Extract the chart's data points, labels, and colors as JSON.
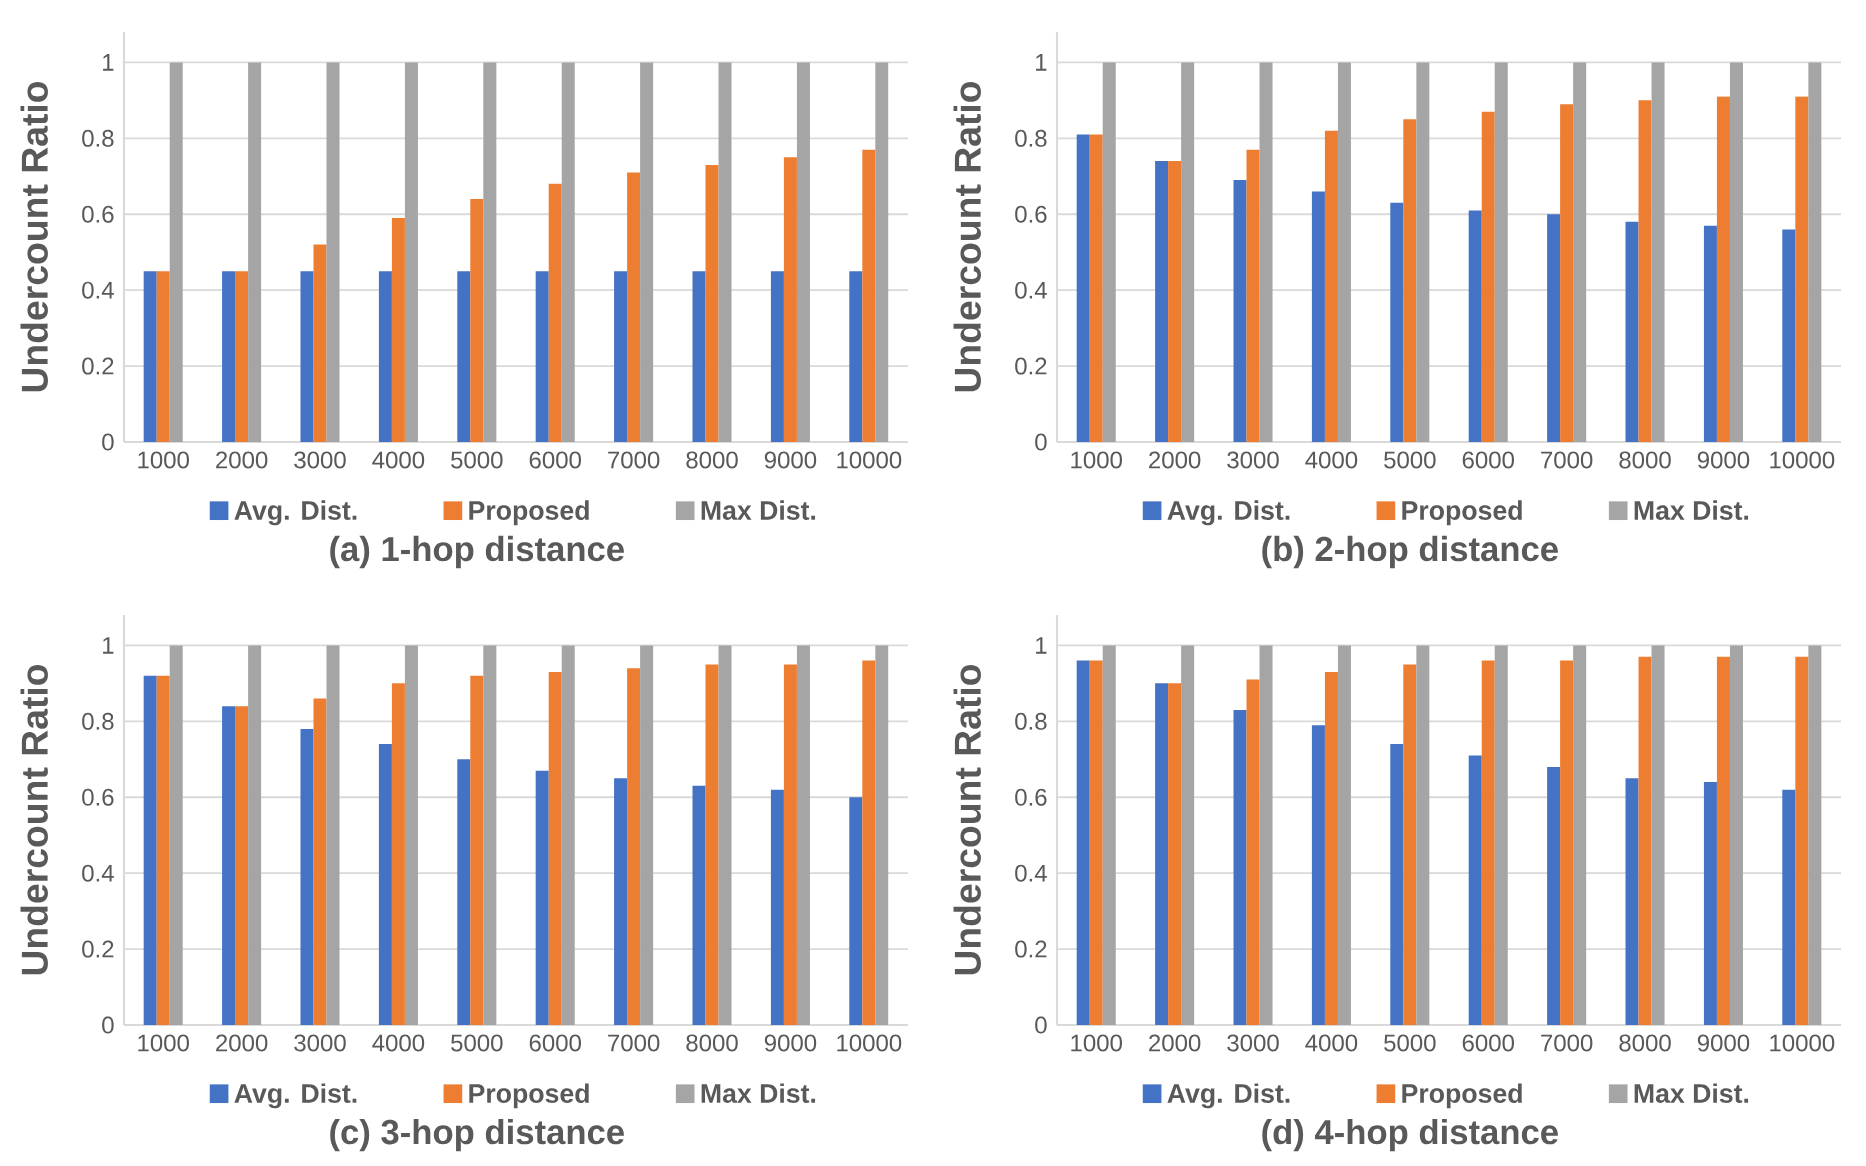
{
  "chart_data": [
    {
      "type": "bar",
      "title": "(a) 1-hop distance",
      "ylabel": "Undercount Ratio",
      "categories": [
        "1000",
        "2000",
        "3000",
        "4000",
        "5000",
        "6000",
        "7000",
        "8000",
        "9000",
        "10000"
      ],
      "ylim": [
        0,
        1.08
      ],
      "yticks": [
        0,
        0.2,
        0.4,
        0.6,
        0.8,
        1
      ],
      "grid": "y",
      "legend": "bottom",
      "series": [
        {
          "name": "Avg. Dist.",
          "color": "#4472c4",
          "values": [
            0.45,
            0.45,
            0.45,
            0.45,
            0.45,
            0.45,
            0.45,
            0.45,
            0.45,
            0.45
          ]
        },
        {
          "name": "Proposed",
          "color": "#ed7d31",
          "values": [
            0.45,
            0.45,
            0.52,
            0.59,
            0.64,
            0.68,
            0.71,
            0.73,
            0.75,
            0.77
          ]
        },
        {
          "name": "Max Dist.",
          "color": "#a5a5a5",
          "values": [
            1,
            1,
            1,
            1,
            1,
            1,
            1,
            1,
            1,
            1
          ]
        }
      ]
    },
    {
      "type": "bar",
      "title": "(b) 2-hop distance",
      "ylabel": "Undercount Ratio",
      "categories": [
        "1000",
        "2000",
        "3000",
        "4000",
        "5000",
        "6000",
        "7000",
        "8000",
        "9000",
        "10000"
      ],
      "ylim": [
        0,
        1.08
      ],
      "yticks": [
        0,
        0.2,
        0.4,
        0.6,
        0.8,
        1
      ],
      "grid": "y",
      "legend": "bottom",
      "series": [
        {
          "name": "Avg. Dist.",
          "color": "#4472c4",
          "values": [
            0.81,
            0.74,
            0.69,
            0.66,
            0.63,
            0.61,
            0.6,
            0.58,
            0.57,
            0.56
          ]
        },
        {
          "name": "Proposed",
          "color": "#ed7d31",
          "values": [
            0.81,
            0.74,
            0.77,
            0.82,
            0.85,
            0.87,
            0.89,
            0.9,
            0.91,
            0.91
          ]
        },
        {
          "name": "Max Dist.",
          "color": "#a5a5a5",
          "values": [
            1,
            1,
            1,
            1,
            1,
            1,
            1,
            1,
            1,
            1
          ]
        }
      ]
    },
    {
      "type": "bar",
      "title": "(c) 3-hop distance",
      "ylabel": "Undercount Ratio",
      "categories": [
        "1000",
        "2000",
        "3000",
        "4000",
        "5000",
        "6000",
        "7000",
        "8000",
        "9000",
        "10000"
      ],
      "ylim": [
        0,
        1.08
      ],
      "yticks": [
        0,
        0.2,
        0.4,
        0.6,
        0.8,
        1
      ],
      "grid": "y",
      "legend": "bottom",
      "series": [
        {
          "name": "Avg. Dist.",
          "color": "#4472c4",
          "values": [
            0.92,
            0.84,
            0.78,
            0.74,
            0.7,
            0.67,
            0.65,
            0.63,
            0.62,
            0.6
          ]
        },
        {
          "name": "Proposed",
          "color": "#ed7d31",
          "values": [
            0.92,
            0.84,
            0.86,
            0.9,
            0.92,
            0.93,
            0.94,
            0.95,
            0.95,
            0.96
          ]
        },
        {
          "name": "Max Dist.",
          "color": "#a5a5a5",
          "values": [
            1,
            1,
            1,
            1,
            1,
            1,
            1,
            1,
            1,
            1
          ]
        }
      ]
    },
    {
      "type": "bar",
      "title": "(d) 4-hop distance",
      "ylabel": "Undercount Ratio",
      "categories": [
        "1000",
        "2000",
        "3000",
        "4000",
        "5000",
        "6000",
        "7000",
        "8000",
        "9000",
        "10000"
      ],
      "ylim": [
        0,
        1.08
      ],
      "yticks": [
        0,
        0.2,
        0.4,
        0.6,
        0.8,
        1
      ],
      "grid": "y",
      "legend": "bottom",
      "series": [
        {
          "name": "Avg. Dist.",
          "color": "#4472c4",
          "values": [
            0.96,
            0.9,
            0.83,
            0.79,
            0.74,
            0.71,
            0.68,
            0.65,
            0.64,
            0.62
          ]
        },
        {
          "name": "Proposed",
          "color": "#ed7d31",
          "values": [
            0.96,
            0.9,
            0.91,
            0.93,
            0.95,
            0.96,
            0.96,
            0.97,
            0.97,
            0.97
          ]
        },
        {
          "name": "Max Dist.",
          "color": "#a5a5a5",
          "values": [
            1,
            1,
            1,
            1,
            1,
            1,
            1,
            1,
            1,
            1
          ]
        }
      ]
    }
  ]
}
